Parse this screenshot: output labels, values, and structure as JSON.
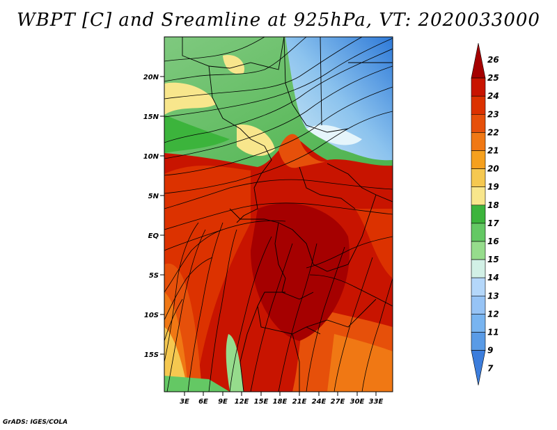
{
  "title": "WBPT [C] and Sreamline at 925hPa, VT: 2020033000",
  "credit": "GrADS: IGES/COLA",
  "map": {
    "lat_labels": [
      "20N",
      "15N",
      "10N",
      "5N",
      "EQ",
      "5S",
      "10S",
      "15S"
    ],
    "lon_labels": [
      "3E",
      "6E",
      "9E",
      "12E",
      "15E",
      "18E",
      "21E",
      "24E",
      "27E",
      "30E",
      "33E"
    ]
  },
  "colorbar": {
    "levels": [
      "26",
      "25",
      "24",
      "23",
      "22",
      "21",
      "20",
      "19",
      "18",
      "17",
      "16",
      "15",
      "14",
      "13",
      "12",
      "11",
      "9",
      "7"
    ],
    "colors": [
      "#a50000",
      "#c81400",
      "#dc3200",
      "#e6500a",
      "#f07814",
      "#f5a01e",
      "#f5c850",
      "#f8e68c",
      "#3cb43c",
      "#64c864",
      "#96dc8c",
      "#d2f0e6",
      "#b4d7fa",
      "#96c3f5",
      "#78b4f0",
      "#5a9be6",
      "#3c7ddc"
    ]
  }
}
